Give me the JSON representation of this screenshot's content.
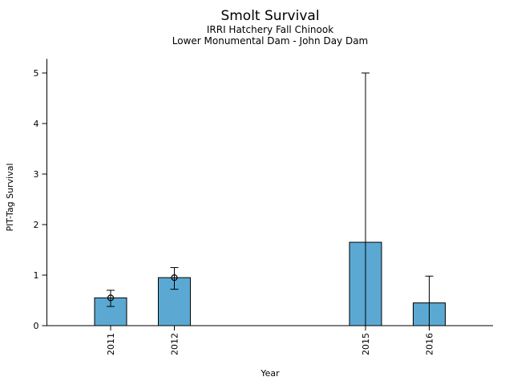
{
  "chart_data": {
    "type": "bar",
    "title": "Smolt Survival",
    "subtitle_lines": [
      "IRRI Hatchery Fall Chinook",
      "Lower Monumental Dam - John Day Dam"
    ],
    "xlabel": "Year",
    "ylabel": "PIT-Tag Survival",
    "categories": [
      "2011",
      "2012",
      "2015",
      "2016"
    ],
    "values": [
      0.55,
      0.95,
      1.65,
      0.45
    ],
    "error_low": [
      0.38,
      0.72,
      0.0,
      0.0
    ],
    "error_high": [
      0.7,
      1.15,
      5.0,
      0.98
    ],
    "point_marker_on_bar": [
      true,
      true,
      false,
      false
    ],
    "yticks": [
      "0",
      "1",
      "2",
      "3",
      "4",
      "5"
    ],
    "ylim": [
      0,
      5.28
    ],
    "xlim": [
      2010,
      2017
    ],
    "grid": false,
    "legend": null,
    "bar_color": "#5BA8D3",
    "bar_edge_color": "#000000",
    "error_color": "#000000",
    "axis_color": "#000000",
    "background": "#FFFFFF"
  }
}
